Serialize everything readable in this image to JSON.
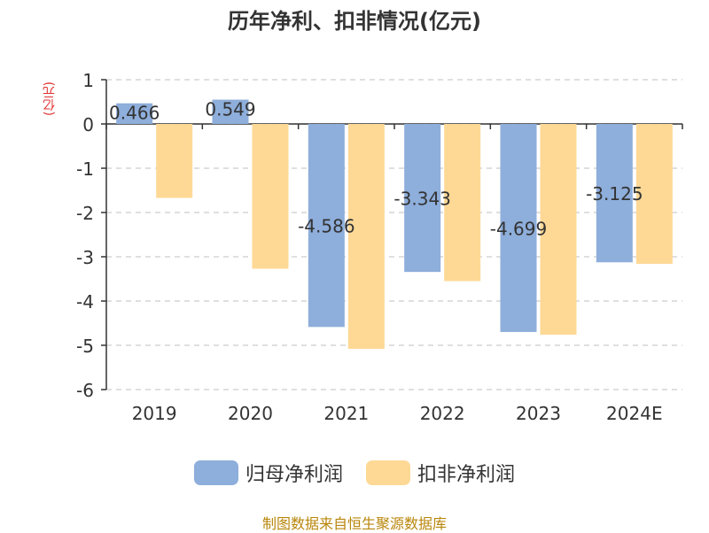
{
  "chart_data": {
    "type": "bar",
    "title": "历年净利、扣非情况(亿元)",
    "ylabel": "(亿元)",
    "categories": [
      "2019",
      "2020",
      "2021",
      "2022",
      "2023",
      "2024E"
    ],
    "series": [
      {
        "name": "归母净利润",
        "values": [
          0.466,
          0.549,
          -4.586,
          -3.343,
          -4.699,
          -3.125
        ],
        "labels": [
          "0.466",
          "0.549",
          "-4.586",
          "-3.343",
          "-4.699",
          "-3.125"
        ],
        "color": "#8eaedb"
      },
      {
        "name": "扣非净利润",
        "values": [
          -1.67,
          -3.27,
          -5.08,
          -3.55,
          -4.76,
          -3.16
        ],
        "color": "#fed996"
      }
    ],
    "ylim": [
      -6,
      1
    ],
    "yticks": [
      1,
      0,
      -1,
      -2,
      -3,
      -4,
      -5,
      -6
    ],
    "grid": true,
    "legend_position": "bottom"
  },
  "source": "制图数据来自恒生聚源数据库"
}
